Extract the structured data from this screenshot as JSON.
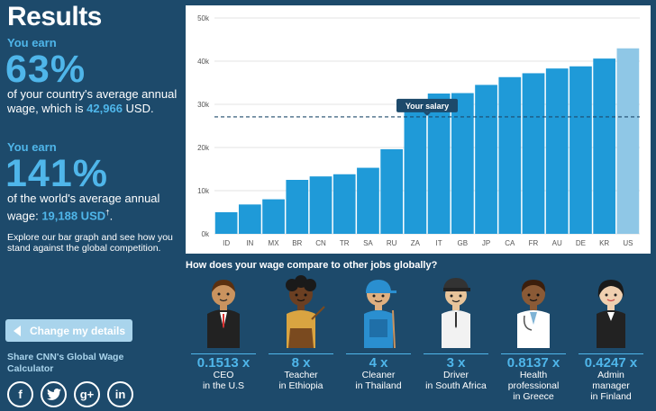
{
  "results": {
    "title": "Results",
    "country": {
      "you_earn": "You earn",
      "percent": "63%",
      "text_before": "of your country's average annual wage, which is ",
      "amount": "42,966",
      "text_after": " USD."
    },
    "world": {
      "you_earn": "You earn",
      "percent": "141%",
      "text_before": "of the world's average annual wage: ",
      "amount": "19,188 USD",
      "dagger": "†",
      "text_after": "."
    },
    "explore": "Explore our bar graph and see how you stand against the global competition."
  },
  "buttons": {
    "change_details": "Change my details"
  },
  "share": {
    "text": "Share CNN's Global Wage Calculator",
    "networks": [
      {
        "icon": "facebook-icon",
        "glyph": "f"
      },
      {
        "icon": "twitter-icon",
        "glyph": "t"
      },
      {
        "icon": "google-plus-icon",
        "glyph": "g+"
      },
      {
        "icon": "linkedin-icon",
        "glyph": "in"
      }
    ]
  },
  "chart_data": {
    "type": "bar",
    "categories": [
      "ID",
      "IN",
      "MX",
      "BR",
      "CN",
      "TR",
      "SA",
      "RU",
      "ZA",
      "IT",
      "GB",
      "JP",
      "CA",
      "FR",
      "AU",
      "DE",
      "KR",
      "US"
    ],
    "values": [
      5000,
      6800,
      8000,
      12500,
      13300,
      13800,
      15300,
      19600,
      29000,
      32500,
      32600,
      34500,
      36300,
      37200,
      38300,
      38800,
      40600,
      42966
    ],
    "highlight_index": 17,
    "ylim": [
      0,
      50000
    ],
    "yticks": [
      0,
      10000,
      20000,
      30000,
      40000,
      50000
    ],
    "ytick_labels": [
      "0k",
      "10k",
      "20k",
      "30k",
      "40k",
      "50k"
    ],
    "salary_line": 27100,
    "salary_label": "Your salary",
    "bar_color": "#1f9ad8",
    "highlight_color": "#8fc7e6"
  },
  "compare": {
    "title": "How does your wage compare to other jobs globally?",
    "jobs": [
      {
        "multiplier": "0.1513 x",
        "label": "CEO\nin the U.S"
      },
      {
        "multiplier": "8 x",
        "label": "Teacher\nin Ethiopia"
      },
      {
        "multiplier": "4 x",
        "label": "Cleaner\nin Thailand"
      },
      {
        "multiplier": "3 x",
        "label": "Driver\nin South Africa"
      },
      {
        "multiplier": "0.8137 x",
        "label": "Health\nprofessional\nin Greece"
      },
      {
        "multiplier": "0.4247 x",
        "label": "Admin\nmanager\nin Finland"
      }
    ]
  },
  "colors": {
    "background": "#1d4a6b",
    "accent": "#4fb6ea",
    "button": "#a9d4ec"
  }
}
